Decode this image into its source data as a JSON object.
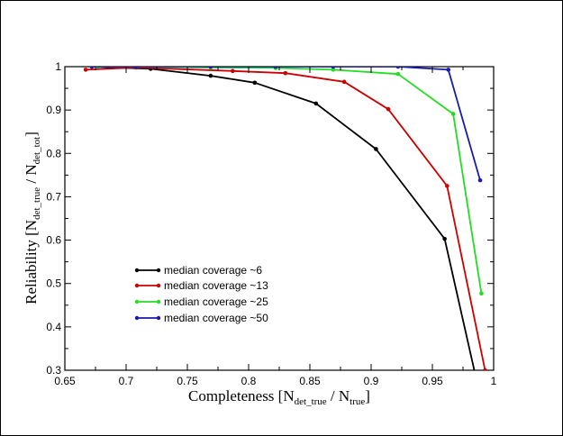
{
  "chart_data": {
    "type": "line",
    "title": "",
    "xlabel": {
      "main": "Completeness  [N",
      "sub1": "det_true",
      "mid": " / N",
      "sub2": "true",
      "end": "]"
    },
    "ylabel": {
      "main": "Reliability  [N",
      "sub1": "det_true",
      "mid": " / N",
      "sub2": "det_tot",
      "end": "]"
    },
    "xlim": [
      0.65,
      1.0
    ],
    "ylim": [
      0.3,
      1.0
    ],
    "xticks": [
      0.65,
      0.7,
      0.75,
      0.8,
      0.85,
      0.9,
      0.95,
      1.0
    ],
    "xtick_labels": [
      "0.65",
      "0.7",
      "0.75",
      "0.8",
      "0.85",
      "0.9",
      "0.95",
      "1"
    ],
    "yticks": [
      0.3,
      0.4,
      0.5,
      0.6,
      0.7,
      0.8,
      0.9,
      1.0
    ],
    "ytick_labels": [
      "0.3",
      "0.4",
      "0.5",
      "0.6",
      "0.7",
      "0.8",
      "0.9",
      "1"
    ],
    "grid": false,
    "legend_position": "lower-left",
    "series": [
      {
        "name": "median coverage ~6",
        "color": "#000000",
        "points": [
          [
            0.672,
            1.0
          ],
          [
            0.72,
            0.995
          ],
          [
            0.769,
            0.979
          ],
          [
            0.805,
            0.963
          ],
          [
            0.855,
            0.915
          ],
          [
            0.904,
            0.81
          ],
          [
            0.96,
            0.603
          ],
          [
            0.985,
            0.29
          ]
        ]
      },
      {
        "name": "median coverage ~13",
        "color": "#cc0000",
        "points": [
          [
            0.667,
            0.993
          ],
          [
            0.708,
            0.998
          ],
          [
            0.787,
            0.99
          ],
          [
            0.83,
            0.985
          ],
          [
            0.878,
            0.965
          ],
          [
            0.914,
            0.902
          ],
          [
            0.962,
            0.725
          ],
          [
            0.993,
            0.3
          ]
        ]
      },
      {
        "name": "median coverage ~25",
        "color": "#22dd22",
        "points": [
          [
            0.677,
            1.0
          ],
          [
            0.708,
            1.0
          ],
          [
            0.769,
            0.998
          ],
          [
            0.822,
            0.997
          ],
          [
            0.869,
            0.993
          ],
          [
            0.922,
            0.983
          ],
          [
            0.967,
            0.891
          ],
          [
            0.99,
            0.477
          ]
        ]
      },
      {
        "name": "median coverage ~50",
        "color": "#1a1aaa",
        "points": [
          [
            0.672,
            1.0
          ],
          [
            0.708,
            1.0
          ],
          [
            0.769,
            1.0
          ],
          [
            0.822,
            1.0
          ],
          [
            0.869,
            1.0
          ],
          [
            0.922,
            1.0
          ],
          [
            0.963,
            0.993
          ],
          [
            0.989,
            0.738
          ]
        ]
      }
    ]
  }
}
